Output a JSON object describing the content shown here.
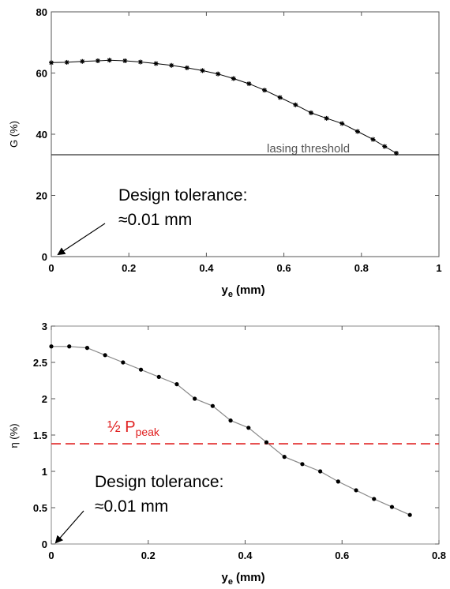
{
  "chart_data": [
    {
      "type": "line",
      "xlabel": "y",
      "xlabel_sub": "e",
      "xlabel_unit": "(mm)",
      "ylabel": "G (%)",
      "xlim": [
        0,
        1
      ],
      "ylim": [
        0,
        80
      ],
      "xticks": [
        0,
        0.2,
        0.4,
        0.6,
        0.8,
        1
      ],
      "xtick_labels": [
        "0",
        "0.2",
        "0.4",
        "0.6",
        "0.8",
        "1"
      ],
      "yticks": [
        0,
        20,
        40,
        60,
        80
      ],
      "ytick_labels": [
        "0",
        "20",
        "40",
        "60",
        "80"
      ],
      "grid": false,
      "series": [
        {
          "x": [
            0,
            0.04,
            0.08,
            0.12,
            0.15,
            0.19,
            0.23,
            0.27,
            0.31,
            0.35,
            0.39,
            0.43,
            0.47,
            0.51,
            0.55,
            0.59,
            0.63,
            0.67,
            0.71,
            0.75,
            0.79,
            0.83,
            0.86,
            0.89
          ],
          "y": [
            63.4,
            63.5,
            63.8,
            64,
            64.2,
            64.0,
            63.6,
            63.1,
            62.5,
            61.7,
            60.8,
            59.7,
            58.2,
            56.5,
            54.4,
            52.0,
            49.6,
            47.0,
            45.2,
            43.5,
            40.9,
            38.3,
            36.0,
            33.8
          ],
          "color": "#000000",
          "marker": "asterisk"
        }
      ],
      "hline": {
        "y": 33.3,
        "color": "#333333",
        "label": "lasing threshold"
      },
      "annotation": {
        "line1": "Design tolerance:",
        "line2": "≈0.01 mm",
        "arrow_to": [
          0,
          0
        ]
      }
    },
    {
      "type": "line",
      "xlabel": "y",
      "xlabel_sub": "e",
      "xlabel_unit": "(mm)",
      "ylabel": "η (%)",
      "xlim": [
        0,
        0.8
      ],
      "ylim": [
        0,
        3
      ],
      "xticks": [
        0,
        0.2,
        0.4,
        0.6,
        0.8
      ],
      "xtick_labels": [
        "0",
        "0.2",
        "0.4",
        "0.6",
        "0.8"
      ],
      "yticks": [
        0,
        0.5,
        1,
        1.5,
        2,
        2.5,
        3
      ],
      "ytick_labels": [
        "0",
        "0.5",
        "1",
        "1.5",
        "2",
        "2.5",
        "3"
      ],
      "grid": false,
      "series": [
        {
          "x": [
            0,
            0.037,
            0.074,
            0.111,
            0.148,
            0.185,
            0.222,
            0.259,
            0.296,
            0.333,
            0.37,
            0.407,
            0.444,
            0.481,
            0.518,
            0.555,
            0.592,
            0.629,
            0.666,
            0.703,
            0.74
          ],
          "y": [
            2.72,
            2.72,
            2.7,
            2.6,
            2.5,
            2.4,
            2.3,
            2.2,
            2.0,
            1.9,
            1.7,
            1.6,
            1.4,
            1.2,
            1.1,
            1.0,
            0.86,
            0.74,
            0.62,
            0.51,
            0.4
          ],
          "color": "#888888",
          "marker": "dot"
        }
      ],
      "hline": {
        "y": 1.38,
        "color": "#e02020",
        "style": "dashed",
        "label_main": "½ P",
        "label_sub": "peak"
      },
      "annotation": {
        "line1": "Design tolerance:",
        "line2": "≈0.01 mm",
        "arrow_to": [
          0,
          0
        ]
      }
    }
  ]
}
